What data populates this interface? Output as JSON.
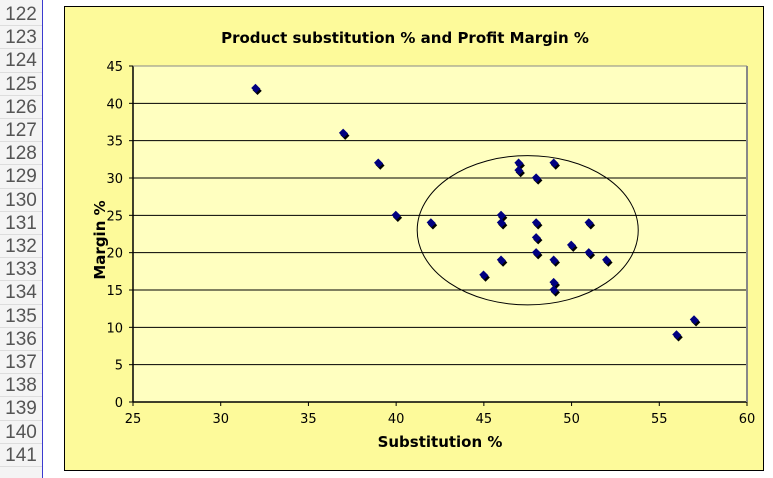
{
  "spreadsheet": {
    "row_numbers": [
      "122",
      "123",
      "124",
      "125",
      "126",
      "127",
      "128",
      "129",
      "130",
      "131",
      "132",
      "133",
      "134",
      "135",
      "136",
      "137",
      "138",
      "139",
      "140",
      "141"
    ]
  },
  "chart_data": {
    "type": "scatter",
    "title": "Product substitution % and Profit Margin %",
    "xlabel": "Substitution %",
    "ylabel": "Margin %",
    "xlim": [
      25,
      60
    ],
    "ylim": [
      0,
      45
    ],
    "xticks": [
      "25",
      "30",
      "35",
      "40",
      "45",
      "50",
      "55",
      "60"
    ],
    "yticks": [
      "0",
      "5",
      "10",
      "15",
      "20",
      "25",
      "30",
      "35",
      "40",
      "45"
    ],
    "grid": "horizontal major gridlines",
    "legend": "none",
    "marker": "diamond",
    "colors": {
      "marker": "#000080",
      "plot_bg": "#ffffc0",
      "chart_bg": "#fdfa9a"
    },
    "series": [
      {
        "points": [
          [
            32,
            42
          ],
          [
            37,
            36
          ],
          [
            39,
            32
          ],
          [
            40,
            25
          ],
          [
            42,
            24
          ],
          [
            45,
            17
          ],
          [
            46,
            25
          ],
          [
            46,
            24
          ],
          [
            46,
            19
          ],
          [
            47,
            32
          ],
          [
            47,
            31
          ],
          [
            48,
            30
          ],
          [
            48,
            24
          ],
          [
            48,
            22
          ],
          [
            48,
            20
          ],
          [
            49,
            32
          ],
          [
            49,
            19
          ],
          [
            49,
            16
          ],
          [
            49,
            15
          ],
          [
            50,
            21
          ],
          [
            51,
            24
          ],
          [
            51,
            20
          ],
          [
            52,
            19
          ],
          [
            56,
            9
          ],
          [
            57,
            11
          ]
        ]
      }
    ],
    "annotations": [
      {
        "shape": "ellipse",
        "center": [
          47.5,
          23
        ],
        "radius_x": 6.3,
        "radius_y": 10
      }
    ]
  }
}
